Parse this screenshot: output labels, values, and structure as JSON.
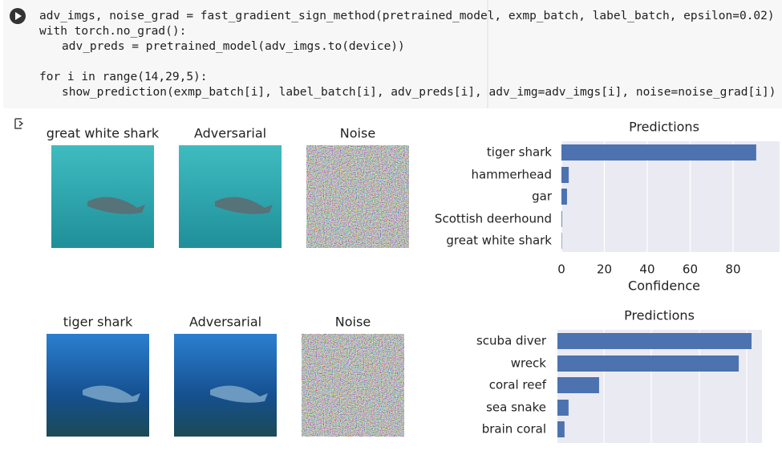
{
  "code": {
    "lines": [
      "adv_imgs, noise_grad = fast_gradient_sign_method(pretrained_model, exmp_batch, label_batch, epsilon=0.02)",
      "with torch.no_grad():",
      "adv_preds = pretrained_model(adv_imgs.to(device))",
      "for i in range(14,29,5):",
      "show_prediction(exmp_batch[i], label_batch[i], adv_preds[i], adv_img=adv_imgs[i], noise=noise_grad[i])"
    ]
  },
  "image_titles": [
    [
      "great white shark",
      "Adversarial",
      "Noise"
    ],
    [
      "tiger shark",
      "Adversarial",
      "Noise"
    ]
  ],
  "chart_data": [
    {
      "type": "barh",
      "title": "Predictions",
      "xlabel": "Confidence",
      "categories": [
        "tiger shark",
        "hammerhead",
        "gar",
        "Scottish deerhound",
        "great white shark"
      ],
      "values": [
        90.8,
        3.4,
        2.6,
        0.3,
        0.2
      ],
      "color": "#4c72b0",
      "xlim": [
        0,
        101.7
      ],
      "xticks": [
        0,
        20,
        40,
        60,
        80
      ],
      "grid": true
    },
    {
      "type": "barh",
      "title": "Predictions",
      "categories": [
        "scuba diver",
        "wreck",
        "coral reef",
        "sea snake",
        "brain coral"
      ],
      "values": [
        82,
        76.6,
        17.6,
        4.7,
        3
      ],
      "color": "#4c72b0",
      "xlim": [
        0,
        86.4
      ],
      "grid": true
    }
  ]
}
